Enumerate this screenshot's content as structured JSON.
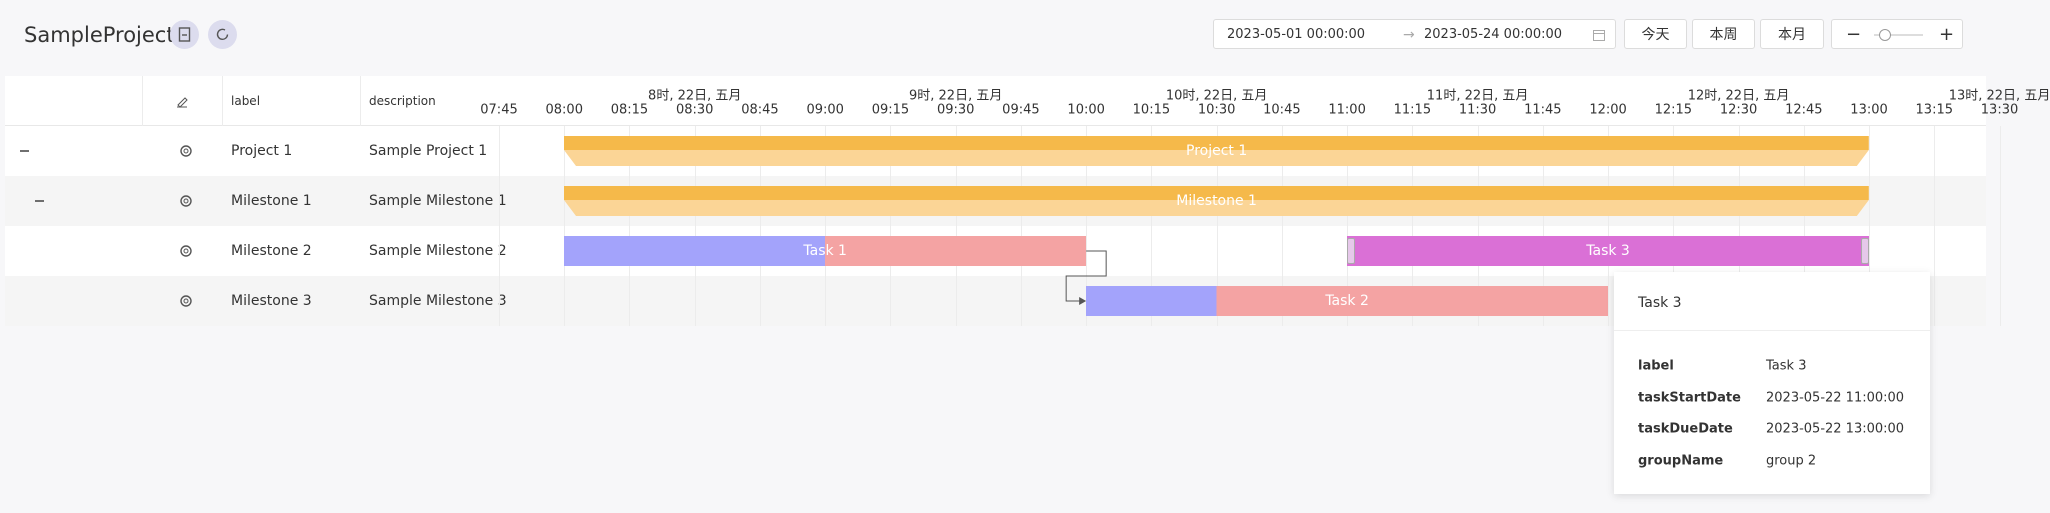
{
  "header": {
    "title": "SampleProject",
    "date_start": "2023-05-01 00:00:00",
    "date_end": "2023-05-24 00:00:00",
    "buttons": [
      "今天",
      "本周",
      "本月"
    ],
    "zoom_out": "−",
    "zoom_in": "+"
  },
  "table": {
    "columns": [
      "label",
      "description"
    ],
    "rows": [
      [
        "Project 1",
        "Sample Project 1"
      ],
      [
        "Milestone 1",
        "Sample Milestone 1"
      ],
      [
        "Milestone 2",
        "Sample Milestone 2"
      ],
      [
        "Milestone 3",
        "Sample Milestone 3"
      ]
    ]
  },
  "timeline": {
    "hours": [
      "8时, 22日, 五月",
      "9时, 22日, 五月",
      "10时, 22日, 五月",
      "11时, 22日, 五月",
      "12时, 22日, 五月",
      "13时, 22日, 五月"
    ],
    "minutes": [
      "07:45",
      "08:00",
      "08:15",
      "08:30",
      "08:45",
      "09:00",
      "09:15",
      "09:30",
      "09:45",
      "10:00",
      "10:15",
      "10:30",
      "10:45",
      "11:00",
      "11:15",
      "11:30",
      "11:45",
      "12:00",
      "12:15",
      "12:30",
      "12:45",
      "13:00",
      "13:15",
      "13:30"
    ]
  },
  "bars": [
    "Project 1",
    "Milestone 1",
    "Task 1",
    "Task 2",
    "Task 3"
  ],
  "tooltip": {
    "title": "Task 3",
    "fields": [
      [
        "label",
        "Task 3"
      ],
      [
        "taskStartDate",
        "2023-05-22 11:00:00"
      ],
      [
        "taskDueDate",
        "2023-05-22 13:00:00"
      ],
      [
        "groupName",
        "group 2"
      ]
    ]
  }
}
